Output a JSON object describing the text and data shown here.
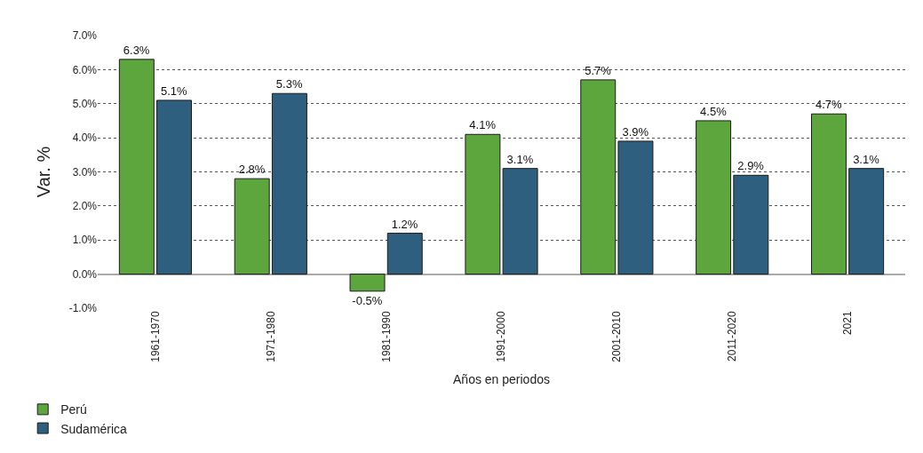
{
  "chart_data": {
    "type": "bar",
    "ylabel": "Var. %",
    "xlabel": "Años en periodos",
    "categories": [
      "1961-1970",
      "1971-1980",
      "1981-1990",
      "1991-2000",
      "2001-2010",
      "2011-2020",
      "2021"
    ],
    "series": [
      {
        "name": "Perú",
        "color": "#5da63e",
        "values": [
          6.3,
          2.8,
          -0.5,
          4.1,
          5.7,
          4.5,
          4.7
        ],
        "value_labels": [
          "6.3%",
          "2.8%",
          "-0.5%",
          "4.1%",
          "5.7%",
          "4.5%",
          "4.7%"
        ]
      },
      {
        "name": "Sudamérica",
        "color": "#2f5f7f",
        "values": [
          5.1,
          5.3,
          1.2,
          3.1,
          3.9,
          2.9,
          3.1
        ],
        "value_labels": [
          "5.1%",
          "5.3%",
          "1.2%",
          "3.1%",
          "3.9%",
          "2.9%",
          "3.1%"
        ]
      }
    ],
    "ylim": [
      -1.0,
      7.0
    ],
    "yticks": [
      {
        "value": -1.0,
        "label": "-1.0%"
      },
      {
        "value": 0.0,
        "label": "0.0%"
      },
      {
        "value": 1.0,
        "label": "1.0%"
      },
      {
        "value": 2.0,
        "label": "2.0%"
      },
      {
        "value": 3.0,
        "label": "3.0%"
      },
      {
        "value": 4.0,
        "label": "4.0%"
      },
      {
        "value": 5.0,
        "label": "5.0%"
      },
      {
        "value": 6.0,
        "label": "6.0%"
      },
      {
        "value": 7.0,
        "label": "7.0%"
      }
    ],
    "grid": "y",
    "legend": "bottom left"
  }
}
